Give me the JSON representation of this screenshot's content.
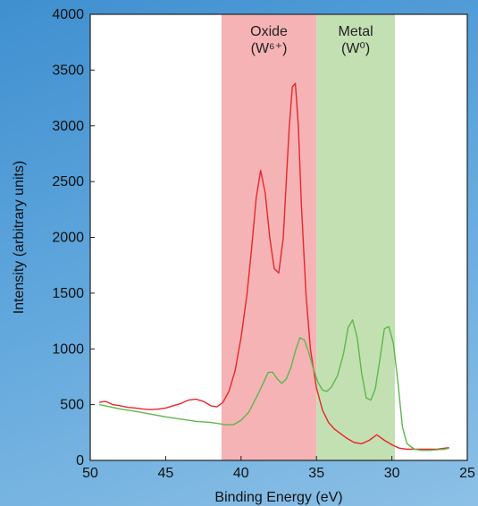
{
  "chart_data": {
    "type": "line",
    "xlabel": "Binding Energy (eV)",
    "ylabel": "Intensity (arbitrary units)",
    "xlim": [
      50,
      25
    ],
    "ylim": [
      0,
      4000
    ],
    "x_ticks": [
      50,
      45,
      40,
      35,
      30,
      25
    ],
    "y_ticks": [
      0,
      500,
      1000,
      1500,
      2000,
      2500,
      3000,
      3500,
      4000
    ],
    "grid": false,
    "regions": [
      {
        "name": "Oxide",
        "label_line1": "Oxide",
        "label_line2": "(W⁶⁺)",
        "x_range": [
          41.3,
          35.0
        ],
        "color": "#f6b3b5"
      },
      {
        "name": "Metal",
        "label_line1": "Metal",
        "label_line2": "(W⁰)",
        "x_range": [
          35.0,
          29.8
        ],
        "color": "#c3e0b3"
      }
    ],
    "series": [
      {
        "color": "#e8262a",
        "x": [
          49.4,
          49.0,
          48.5,
          48.0,
          47.5,
          47.0,
          46.5,
          46.0,
          45.5,
          45.0,
          44.5,
          44.0,
          43.5,
          43.0,
          42.5,
          42.0,
          41.6,
          41.2,
          40.8,
          40.4,
          40.0,
          39.6,
          39.3,
          39.0,
          38.7,
          38.4,
          38.1,
          37.8,
          37.5,
          37.2,
          37.0,
          36.8,
          36.6,
          36.4,
          36.2,
          36.0,
          35.7,
          35.4,
          35.0,
          34.6,
          34.2,
          33.8,
          33.4,
          33.0,
          32.5,
          32.0,
          31.5,
          31.0,
          30.5,
          30.0,
          29.5,
          29.0,
          28.5,
          28.0,
          27.5,
          27.0,
          26.5,
          26.2
        ],
        "values": [
          520,
          530,
          500,
          490,
          475,
          470,
          460,
          455,
          460,
          470,
          490,
          510,
          540,
          550,
          530,
          490,
          480,
          520,
          620,
          800,
          1100,
          1500,
          1900,
          2350,
          2600,
          2400,
          2000,
          1720,
          1680,
          2000,
          2500,
          3000,
          3350,
          3380,
          3000,
          2300,
          1500,
          1000,
          650,
          450,
          340,
          280,
          240,
          200,
          160,
          150,
          180,
          230,
          180,
          140,
          110,
          100,
          100,
          100,
          100,
          100,
          110,
          115
        ]
      },
      {
        "color": "#5cb84a",
        "x": [
          49.4,
          49.0,
          48.0,
          47.0,
          46.0,
          45.0,
          44.0,
          43.0,
          42.0,
          41.5,
          41.0,
          40.5,
          40.0,
          39.5,
          39.0,
          38.5,
          38.2,
          37.9,
          37.6,
          37.3,
          37.0,
          36.7,
          36.4,
          36.1,
          35.8,
          35.5,
          35.2,
          34.9,
          34.6,
          34.3,
          34.0,
          33.6,
          33.2,
          32.9,
          32.6,
          32.3,
          32.0,
          31.7,
          31.4,
          31.1,
          30.8,
          30.5,
          30.2,
          29.9,
          29.6,
          29.3,
          29.0,
          28.5,
          28.0,
          27.5,
          27.0,
          26.5,
          26.2
        ],
        "values": [
          500,
          490,
          460,
          440,
          415,
          390,
          370,
          350,
          340,
          330,
          320,
          320,
          360,
          430,
          560,
          700,
          790,
          790,
          730,
          690,
          730,
          830,
          980,
          1100,
          1080,
          960,
          820,
          700,
          630,
          620,
          660,
          760,
          960,
          1190,
          1260,
          1100,
          780,
          560,
          540,
          640,
          900,
          1180,
          1200,
          1050,
          700,
          300,
          150,
          100,
          90,
          90,
          95,
          100,
          110
        ]
      }
    ]
  }
}
